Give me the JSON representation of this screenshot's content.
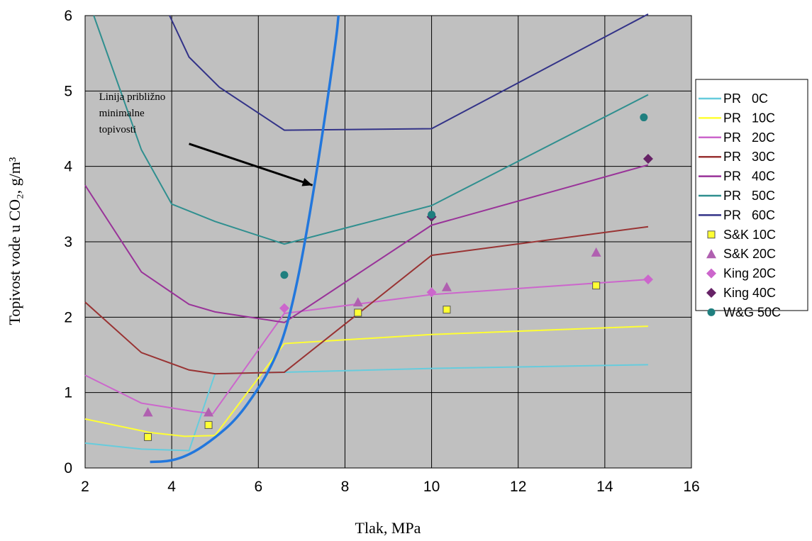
{
  "chart_data": {
    "type": "line",
    "xlabel": "Tlak, MPa",
    "ylabel": "Topivost vode u CO₂, g/m³",
    "xlim": [
      2,
      16
    ],
    "ylim": [
      0,
      6
    ],
    "xticks": [
      2,
      4,
      6,
      8,
      10,
      12,
      14,
      16
    ],
    "yticks": [
      0,
      1,
      2,
      3,
      4,
      5,
      6
    ],
    "grid": true,
    "plot_background": "#c0c0c0",
    "legend_position": "right",
    "series": [
      {
        "name": "PR   0C",
        "kind": "line",
        "color": "#66ccdd",
        "x": [
          2,
          3.3,
          4.4,
          5.0,
          6.6,
          10,
          15
        ],
        "y": [
          0.33,
          0.25,
          0.23,
          1.25,
          1.27,
          1.32,
          1.37
        ]
      },
      {
        "name": "PR   10C",
        "kind": "line",
        "color": "#ffff33",
        "x": [
          2,
          3.5,
          4.3,
          5.0,
          6.6,
          10,
          15
        ],
        "y": [
          0.65,
          0.47,
          0.42,
          0.43,
          1.65,
          1.77,
          1.88
        ]
      },
      {
        "name": "PR   20C",
        "kind": "line",
        "color": "#cc66cc",
        "x": [
          2,
          3.3,
          4.5,
          4.95,
          6.6,
          10,
          15
        ],
        "y": [
          1.23,
          0.86,
          0.75,
          0.72,
          2.05,
          2.3,
          2.5
        ]
      },
      {
        "name": "PR   30C",
        "kind": "line",
        "color": "#993333",
        "x": [
          2,
          3.3,
          4.4,
          5.0,
          6.6,
          10,
          15
        ],
        "y": [
          2.2,
          1.53,
          1.3,
          1.25,
          1.27,
          2.82,
          3.2
        ]
      },
      {
        "name": "PR   40C",
        "kind": "line",
        "color": "#993399",
        "x": [
          2,
          3.3,
          4.4,
          5.0,
          6.6,
          10,
          15
        ],
        "y": [
          3.75,
          2.6,
          2.17,
          2.07,
          1.93,
          3.22,
          4.02
        ]
      },
      {
        "name": "PR   50C",
        "kind": "line",
        "color": "#2f8f8f",
        "x": [
          2.2,
          3.3,
          4.0,
          5.0,
          6.6,
          10,
          15
        ],
        "y": [
          6.0,
          4.22,
          3.5,
          3.27,
          2.97,
          3.48,
          4.95
        ]
      },
      {
        "name": "PR   60C",
        "kind": "line",
        "color": "#333388",
        "x": [
          3.95,
          4.4,
          5.1,
          6.6,
          10,
          15
        ],
        "y": [
          6.0,
          5.45,
          5.05,
          4.48,
          4.5,
          6.02
        ]
      },
      {
        "name": "S&K 10C",
        "kind": "square",
        "color": "#ffff33",
        "x": [
          3.45,
          4.85,
          8.3,
          10.35,
          13.8
        ],
        "y": [
          0.41,
          0.57,
          2.06,
          2.1,
          2.42
        ]
      },
      {
        "name": "S&K 20C",
        "kind": "triangle",
        "color": "#b060b0",
        "x": [
          3.45,
          4.85,
          8.3,
          10.35,
          13.8
        ],
        "y": [
          0.74,
          0.74,
          2.2,
          2.4,
          2.86
        ]
      },
      {
        "name": "King 20C",
        "kind": "diamond",
        "color": "#cc66cc",
        "x": [
          6.6,
          10,
          15
        ],
        "y": [
          2.12,
          2.33,
          2.5
        ]
      },
      {
        "name": "King 40C",
        "kind": "diamond",
        "color": "#662266",
        "x": [
          10,
          15
        ],
        "y": [
          3.33,
          4.1
        ]
      },
      {
        "name": "W&G 50C",
        "kind": "circle",
        "color": "#1f7f7f",
        "x": [
          6.6,
          10,
          14.9
        ],
        "y": [
          2.56,
          3.36,
          4.65
        ]
      }
    ],
    "min_solubility_line": {
      "color": "#2277dd",
      "x": [
        3.5,
        4.0,
        4.5,
        5.0,
        5.5,
        6.0,
        6.3,
        6.6,
        6.9,
        7.2,
        7.5,
        7.8,
        7.85
      ],
      "y": [
        0.08,
        0.09,
        0.2,
        0.4,
        0.65,
        1.05,
        1.35,
        1.75,
        2.45,
        3.4,
        4.5,
        5.7,
        6.0
      ]
    },
    "annotation": {
      "lines": [
        "Linija približno",
        "minimalne",
        "topivosti"
      ],
      "arrow_from": [
        4.4,
        4.3
      ],
      "arrow_to": [
        7.25,
        3.75
      ]
    }
  }
}
